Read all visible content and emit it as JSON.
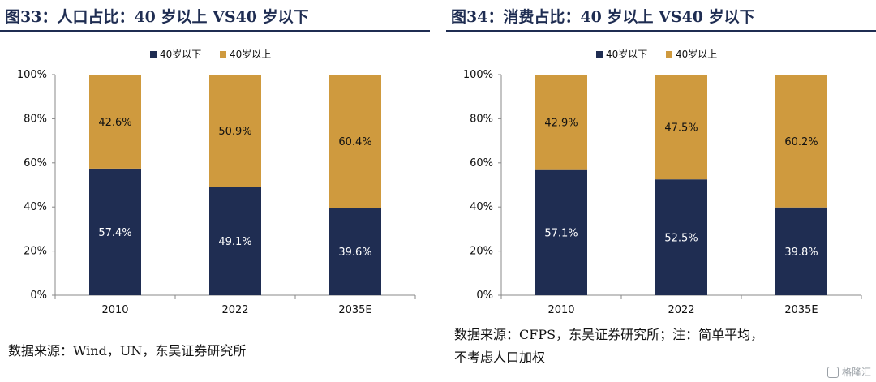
{
  "colors": {
    "below40": "#1f2d52",
    "above40": "#cf9a3e",
    "title": "#1f2d52"
  },
  "watermark": {
    "text": "格隆汇",
    "icon": "glh-logo-icon"
  },
  "chart_data": [
    {
      "type": "bar",
      "stacked": true,
      "title": "图33：人口占比：40 岁以上 VS40 岁以下",
      "source": "数据来源：Wind，UN，东吴证券研究所",
      "categories": [
        "2010",
        "2022",
        "2035E"
      ],
      "series": [
        {
          "name": "40岁以下",
          "values": [
            57.4,
            49.1,
            39.6
          ],
          "labels": [
            "57.4%",
            "49.1%",
            "39.6%"
          ]
        },
        {
          "name": "40岁以上",
          "values": [
            42.6,
            50.9,
            60.4
          ],
          "labels": [
            "42.6%",
            "50.9%",
            "60.4%"
          ]
        }
      ],
      "ylim": [
        0,
        100
      ],
      "yticks": [
        "0%",
        "20%",
        "40%",
        "60%",
        "80%",
        "100%"
      ],
      "legend": "top-center",
      "grid": false
    },
    {
      "type": "bar",
      "stacked": true,
      "title": "图34：消费占比：40 岁以上 VS40 岁以下",
      "source": "数据来源：CFPS，东吴证券研究所；注：简单平均，",
      "source_line2": "不考虑人口加权",
      "categories": [
        "2010",
        "2022",
        "2035E"
      ],
      "series": [
        {
          "name": "40岁以下",
          "values": [
            57.1,
            52.5,
            39.8
          ],
          "labels": [
            "57.1%",
            "52.5%",
            "39.8%"
          ]
        },
        {
          "name": "40岁以上",
          "values": [
            42.9,
            47.5,
            60.2
          ],
          "labels": [
            "42.9%",
            "47.5%",
            "60.2%"
          ]
        }
      ],
      "ylim": [
        0,
        100
      ],
      "yticks": [
        "0%",
        "20%",
        "40%",
        "60%",
        "80%",
        "100%"
      ],
      "legend": "top-center",
      "grid": false
    }
  ]
}
